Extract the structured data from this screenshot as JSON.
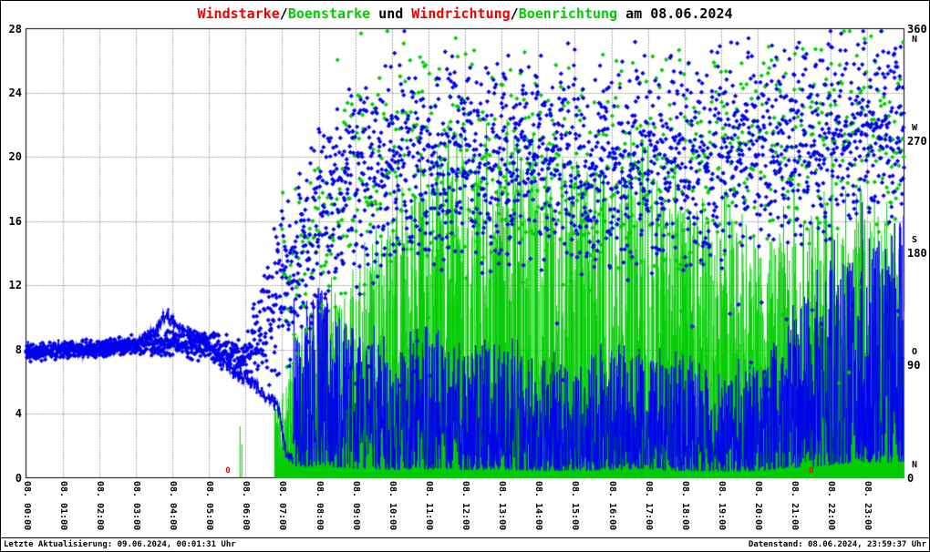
{
  "title": {
    "segments": [
      {
        "text": "Windstarke",
        "color": "#ee0000"
      },
      {
        "text": "/",
        "color": "#000000"
      },
      {
        "text": "Boenstarke",
        "color": "#00cc00"
      },
      {
        "text": " und ",
        "color": "#000000"
      },
      {
        "text": "Windrichtung",
        "color": "#ee0000"
      },
      {
        "text": "/",
        "color": "#000000"
      },
      {
        "text": "Boenrichtung",
        "color": "#00cc00"
      },
      {
        "text": " am 08.06.2024",
        "color": "#000000"
      }
    ]
  },
  "footer": {
    "left": "Letzte Aktualisierung: 09.06.2024, 00:01:31 Uhr",
    "right": "Datenstand: 08.06.2024, 23:59:37 Uhr"
  },
  "chart_data": {
    "type": "mixed",
    "title": "Windstarke/Boenstarke und Windrichtung/Boenrichtung am 08.06.2024",
    "seed": 20240608,
    "grid": true,
    "left_axis": {
      "range": [
        0,
        28
      ],
      "ticks": [
        0,
        4,
        8,
        12,
        16,
        20,
        24,
        28
      ]
    },
    "right_axis": {
      "range": [
        0,
        360
      ],
      "ticks": [
        {
          "value": 360,
          "label": "360",
          "compass": "N",
          "compass_offset": 13
        },
        {
          "value": 270,
          "label": "270",
          "compass": "W",
          "compass_offset": -13
        },
        {
          "value": 180,
          "label": "180",
          "compass": "S",
          "compass_offset": -13
        },
        {
          "value": 90,
          "label": "90",
          "compass": "O",
          "compass_offset": -13
        },
        {
          "value": 0,
          "label": "0",
          "compass": "N",
          "compass_offset": -13
        }
      ]
    },
    "x_axis": {
      "hours": 24,
      "labels": [
        "08. 00:00",
        "08. 01:00",
        "08. 02:00",
        "08. 03:00",
        "08. 04:00",
        "08. 05:00",
        "08. 06:00",
        "08. 07:00",
        "08. 08:00",
        "08. 09:00",
        "08. 10:00",
        "08. 11:00",
        "08. 12:00",
        "08. 13:00",
        "08. 14:00",
        "08. 15:00",
        "08. 16:00",
        "08. 17:00",
        "08. 18:00",
        "08. 19:00",
        "08. 20:00",
        "08. 21:00",
        "08. 22:00",
        "08. 23:00"
      ]
    },
    "series": [
      {
        "name": "Windstarke",
        "color": "#0000ee",
        "kind": "line-with-noise",
        "axis": "left",
        "line_breakpoints": [
          [
            0,
            8.1
          ],
          [
            0.5,
            7.9
          ],
          [
            1,
            8.2
          ],
          [
            1.5,
            7.8
          ],
          [
            2,
            8.0
          ],
          [
            2.6,
            8.2
          ],
          [
            3,
            8.3
          ],
          [
            3.5,
            9.1
          ],
          [
            3.8,
            10.2
          ],
          [
            4.1,
            9.5
          ],
          [
            4.6,
            8.9
          ],
          [
            5,
            8.2
          ],
          [
            5.4,
            7.3
          ],
          [
            5.8,
            6.5
          ],
          [
            6.2,
            6.0
          ],
          [
            6.6,
            5.0
          ],
          [
            6.9,
            4.4
          ],
          [
            7.0,
            3.0
          ],
          [
            7.1,
            1.6
          ],
          [
            7.3,
            1.0
          ]
        ],
        "line_noise": 0.55,
        "noisy_from": 7.3,
        "noisy_top_by_hour": [
          0,
          0,
          0,
          0,
          0,
          0,
          0,
          9,
          12.5,
          9,
          8,
          8.5,
          8,
          8,
          7.5,
          7,
          8,
          7.5,
          7,
          6.5,
          7,
          10,
          13,
          16
        ]
      },
      {
        "name": "Boenstarke",
        "color": "#00cc00",
        "kind": "impulse",
        "axis": "left",
        "start": 6.8,
        "top_by_hour": [
          0,
          0,
          0,
          0,
          0,
          0,
          2,
          6,
          10.5,
          12,
          16,
          19,
          20,
          20.5,
          19,
          18.5,
          19,
          19.5,
          17,
          16,
          14.5,
          16,
          17.5,
          16
        ],
        "extra_impulses": [
          [
            5.85,
            3.2
          ],
          [
            5.9,
            2.1
          ]
        ]
      },
      {
        "name": "Windrichtung",
        "color": "#0000ee",
        "kind": "scatter",
        "axis": "right",
        "start": 0,
        "step_seconds": 30,
        "center_by_hour": [
          100,
          102,
          104,
          106,
          108,
          105,
          95,
          150,
          205,
          235,
          245,
          250,
          255,
          250,
          252,
          248,
          250,
          252,
          255,
          258,
          262,
          268,
          275,
          282
        ],
        "spread_by_hour": [
          7,
          7,
          8,
          8,
          10,
          12,
          18,
          70,
          75,
          80,
          85,
          85,
          85,
          85,
          85,
          85,
          85,
          85,
          85,
          85,
          80,
          80,
          80,
          78
        ]
      },
      {
        "name": "Boenrichtung",
        "color": "#00cc00",
        "kind": "scatter",
        "axis": "right",
        "start": 7.0,
        "step_seconds": 70,
        "center_by_hour": [
          0,
          0,
          0,
          0,
          0,
          0,
          0,
          150,
          205,
          235,
          245,
          250,
          255,
          250,
          252,
          248,
          250,
          252,
          255,
          258,
          262,
          268,
          275,
          282
        ],
        "spread_by_hour": [
          0,
          0,
          0,
          0,
          0,
          0,
          0,
          75,
          80,
          85,
          90,
          90,
          90,
          90,
          90,
          90,
          90,
          90,
          90,
          90,
          85,
          85,
          85,
          82
        ]
      }
    ],
    "annotations": [
      {
        "t": 5.5,
        "label": "0",
        "color": "#ff0000"
      },
      {
        "t": 21.45,
        "label": "0",
        "color": "#ff0000"
      }
    ]
  }
}
